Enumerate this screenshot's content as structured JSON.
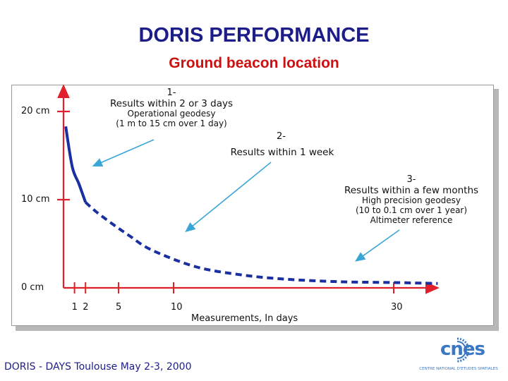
{
  "title": "DORIS PERFORMANCE",
  "subtitle": "Ground beacon location",
  "chart_data": {
    "type": "line",
    "y_tick_labels": [
      "20 cm",
      "10 cm",
      "0 cm"
    ],
    "y_ticks": [
      20,
      10,
      0
    ],
    "x_tick_labels": [
      "1",
      "2",
      "5",
      "10",
      "30"
    ],
    "x_ticks": [
      1,
      2,
      5,
      10,
      30
    ],
    "xlabel": "Measurements, In days",
    "series": [
      {
        "style": "solid",
        "x": [
          0.2,
          0.8,
          1.4,
          2
        ],
        "y": [
          18.3,
          13.7,
          11.8,
          9.7
        ]
      },
      {
        "style": "dashed",
        "x": [
          2,
          3,
          4.5,
          6,
          8,
          12,
          16,
          20,
          25,
          30,
          34
        ],
        "y": [
          9.7,
          8.6,
          7.2,
          5.9,
          4.3,
          2.4,
          1.5,
          1.0,
          0.7,
          0.6,
          0.5
        ]
      }
    ],
    "annotations": [
      {
        "number": "1-",
        "heading": "Results within 2 or 3 days",
        "details": [
          "Operational geodesy",
          "(1 m to 15 cm over 1 day)"
        ]
      },
      {
        "number": "2-",
        "heading": "Results within 1 week",
        "details": []
      },
      {
        "number": "3-",
        "heading": "Results within  a few months",
        "details": [
          "High precision geodesy",
          "(10 to 0.1 cm over 1 year)",
          "Altimeter reference"
        ]
      }
    ],
    "colors": {
      "axis": "#e0202a",
      "curve": "#1a2fa0",
      "arrow": "#3aa6d6"
    }
  },
  "footer": "DORIS - DAYS   Toulouse May 2-3, 2000",
  "logo": {
    "word": "cnes",
    "tagline": "CENTRE NATIONAL D'ETUDES SPATIALES"
  }
}
